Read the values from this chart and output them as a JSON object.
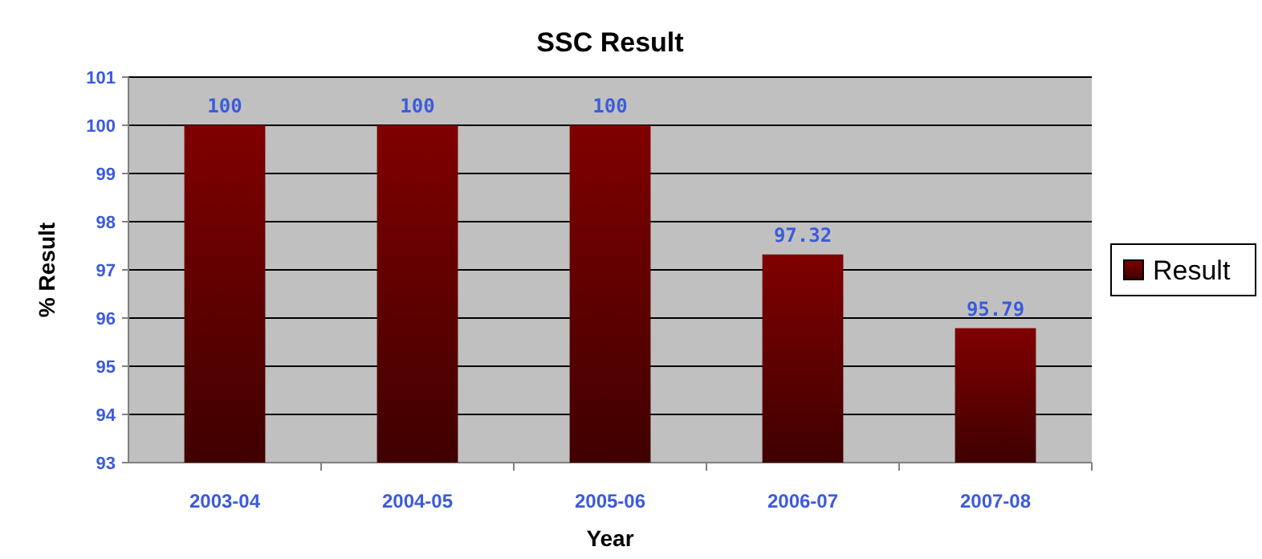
{
  "chart_data": {
    "type": "bar",
    "title": "SSC Result",
    "xlabel": "Year",
    "ylabel": "% Result",
    "categories": [
      "2003-04",
      "2004-05",
      "2005-06",
      "2006-07",
      "2007-08"
    ],
    "series": [
      {
        "name": "Result",
        "color": "#800000",
        "values": [
          100,
          100,
          100,
          97.32,
          95.79
        ]
      }
    ],
    "ylim": [
      93,
      101
    ],
    "yticks": [
      93,
      94,
      95,
      96,
      97,
      98,
      99,
      100,
      101
    ],
    "grid": "y",
    "legend": "right",
    "data_labels": true
  }
}
